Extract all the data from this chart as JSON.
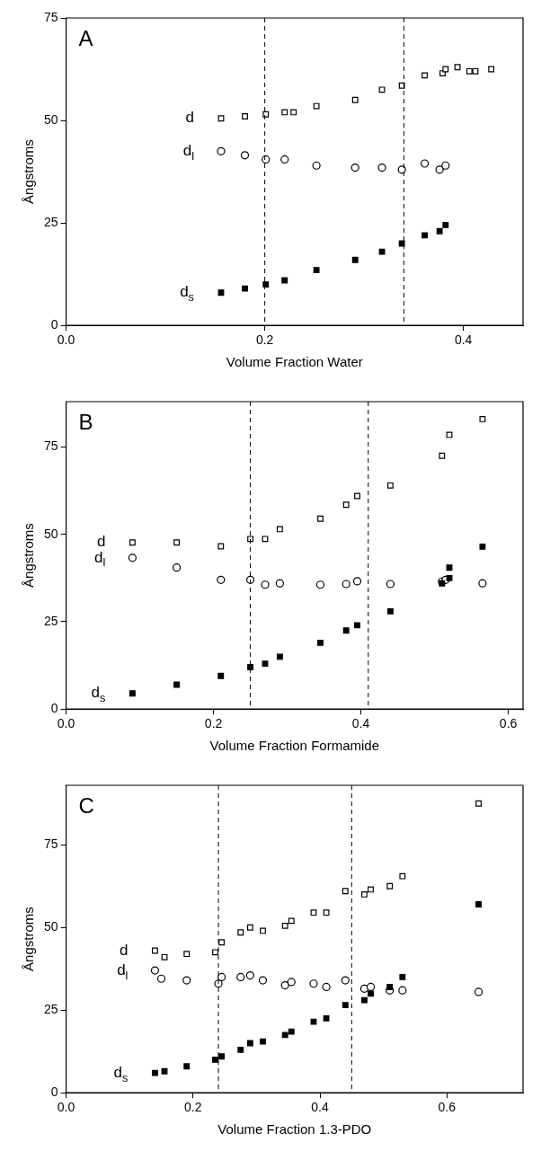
{
  "chart_data": [
    {
      "type": "scatter",
      "annotations": [
        "A"
      ],
      "xlabel": "Volume Fraction Water",
      "ylabel": "Ångstroms",
      "xlim": [
        0,
        0.46
      ],
      "ylim": [
        0,
        75
      ],
      "xticks": [
        {
          "value": 0,
          "label": "0.0"
        },
        {
          "value": 0.2,
          "label": "0.2"
        },
        {
          "value": 0.4,
          "label": "0.4"
        }
      ],
      "yticks": [
        0,
        25,
        50,
        75
      ],
      "grid": false,
      "legend": false,
      "ref_lines": [
        {
          "axis": "x",
          "value": 0.2,
          "line_style": "dashed"
        },
        {
          "axis": "x",
          "value": 0.34,
          "line_style": "dashed"
        }
      ],
      "series": [
        {
          "name": "d",
          "color": "#ffffff",
          "marker": "square",
          "x": [
            0.156,
            0.18,
            0.201,
            0.22,
            0.229,
            0.252,
            0.291,
            0.318,
            0.338,
            0.361,
            0.379,
            0.382,
            0.394,
            0.406,
            0.412,
            0.428
          ],
          "values": [
            50.5,
            51,
            51.5,
            52,
            52,
            53.5,
            55,
            57.5,
            58.5,
            61,
            61.5,
            62.5,
            63,
            62,
            62,
            62.5
          ]
        },
        {
          "name": "d$_{l}$",
          "color": "#ffffff",
          "marker": "circle",
          "x": [
            0.156,
            0.18,
            0.201,
            0.22,
            0.252,
            0.291,
            0.318,
            0.338,
            0.361,
            0.376,
            0.382
          ],
          "values": [
            42.5,
            41.5,
            40.5,
            40.5,
            39,
            38.5,
            38.5,
            38,
            39.5,
            38,
            39
          ]
        },
        {
          "name": "d$_{s}$",
          "color": "#000000",
          "marker": "square",
          "x": [
            0.156,
            0.18,
            0.201,
            0.22,
            0.252,
            0.291,
            0.318,
            0.338,
            0.361,
            0.376,
            0.382
          ],
          "values": [
            8,
            9,
            10,
            11,
            13.5,
            16,
            18,
            20,
            22,
            23,
            24.5
          ]
        }
      ]
    },
    {
      "type": "scatter",
      "annotations": [
        "B"
      ],
      "xlabel": "Volume Fraction Formamide",
      "ylabel": "Ångstroms",
      "xlim": [
        0,
        0.62
      ],
      "ylim": [
        0,
        88
      ],
      "xticks": [
        {
          "value": 0,
          "label": "0.0"
        },
        {
          "value": 0.2,
          "label": "0.2"
        },
        {
          "value": 0.4,
          "label": "0.4"
        },
        {
          "value": 0.6,
          "label": "0.6"
        }
      ],
      "yticks": [
        0,
        25,
        50,
        75
      ],
      "grid": false,
      "legend": false,
      "ref_lines": [
        {
          "axis": "x",
          "value": 0.25,
          "line_style": "dashed"
        },
        {
          "axis": "x",
          "value": 0.41,
          "line_style": "dashed"
        }
      ],
      "series": [
        {
          "name": "d",
          "color": "#ffffff",
          "marker": "square",
          "x": [
            0.09,
            0.15,
            0.21,
            0.25,
            0.27,
            0.29,
            0.345,
            0.38,
            0.395,
            0.44,
            0.51,
            0.52,
            0.565
          ],
          "values": [
            47.7,
            47.7,
            46.6,
            48.7,
            48.7,
            51.5,
            54.5,
            58.5,
            61,
            64,
            72.5,
            78.5,
            83
          ]
        },
        {
          "name": "d$_{l}$",
          "color": "#ffffff",
          "marker": "circle",
          "x": [
            0.09,
            0.15,
            0.21,
            0.25,
            0.27,
            0.29,
            0.345,
            0.38,
            0.395,
            0.44,
            0.51,
            0.515,
            0.565
          ],
          "values": [
            43.3,
            40.5,
            37,
            37,
            35.6,
            36,
            35.6,
            35.8,
            36.6,
            35.8,
            36.5,
            37,
            36
          ]
        },
        {
          "name": "d$_{s}$",
          "color": "#000000",
          "marker": "square",
          "x": [
            0.09,
            0.15,
            0.21,
            0.25,
            0.27,
            0.29,
            0.345,
            0.38,
            0.395,
            0.44,
            0.51,
            0.52,
            0.52,
            0.565
          ],
          "values": [
            4.5,
            7,
            9.5,
            12,
            13,
            15,
            19,
            22.5,
            24,
            28,
            36,
            37.5,
            40.5,
            46.5
          ]
        }
      ]
    },
    {
      "type": "scatter",
      "annotations": [
        "C"
      ],
      "xlabel": "Volume Fraction 1.3-PDO",
      "ylabel": "Ångstroms",
      "xlim": [
        0,
        0.72
      ],
      "ylim": [
        0,
        93
      ],
      "xticks": [
        {
          "value": 0,
          "label": "0.0"
        },
        {
          "value": 0.2,
          "label": "0.2"
        },
        {
          "value": 0.4,
          "label": "0.4"
        },
        {
          "value": 0.6,
          "label": "0.6"
        }
      ],
      "yticks": [
        0,
        25,
        50,
        75
      ],
      "grid": false,
      "legend": false,
      "ref_lines": [
        {
          "axis": "x",
          "value": 0.24,
          "line_style": "dashed"
        },
        {
          "axis": "x",
          "value": 0.45,
          "line_style": "dashed"
        }
      ],
      "series": [
        {
          "name": "d",
          "color": "#ffffff",
          "marker": "square",
          "x": [
            0.14,
            0.155,
            0.19,
            0.235,
            0.245,
            0.275,
            0.29,
            0.31,
            0.345,
            0.355,
            0.39,
            0.41,
            0.44,
            0.47,
            0.48,
            0.51,
            0.53,
            0.65
          ],
          "values": [
            43,
            41,
            42,
            42.5,
            45.5,
            48.5,
            50,
            49,
            50.5,
            52,
            54.5,
            54.5,
            61,
            60,
            61.5,
            62.5,
            65.5,
            87.5
          ]
        },
        {
          "name": "d$_{l}$",
          "color": "#ffffff",
          "marker": "circle",
          "x": [
            0.14,
            0.15,
            0.19,
            0.24,
            0.245,
            0.275,
            0.29,
            0.31,
            0.345,
            0.355,
            0.39,
            0.41,
            0.44,
            0.47,
            0.48,
            0.51,
            0.53,
            0.65
          ],
          "values": [
            37,
            34.5,
            34,
            33,
            35,
            35,
            35.5,
            34,
            32.5,
            33.5,
            33,
            32,
            34,
            31.5,
            32,
            31,
            31,
            30.5
          ]
        },
        {
          "name": "d$_{s}$",
          "color": "#000000",
          "marker": "square",
          "x": [
            0.14,
            0.155,
            0.19,
            0.235,
            0.245,
            0.275,
            0.29,
            0.31,
            0.345,
            0.355,
            0.39,
            0.41,
            0.44,
            0.47,
            0.48,
            0.51,
            0.53,
            0.65
          ],
          "values": [
            6,
            6.5,
            8,
            10,
            11,
            13,
            15,
            15.5,
            17.5,
            18.5,
            21.5,
            22.5,
            26.5,
            28,
            30,
            32,
            35,
            57
          ]
        }
      ]
    }
  ]
}
